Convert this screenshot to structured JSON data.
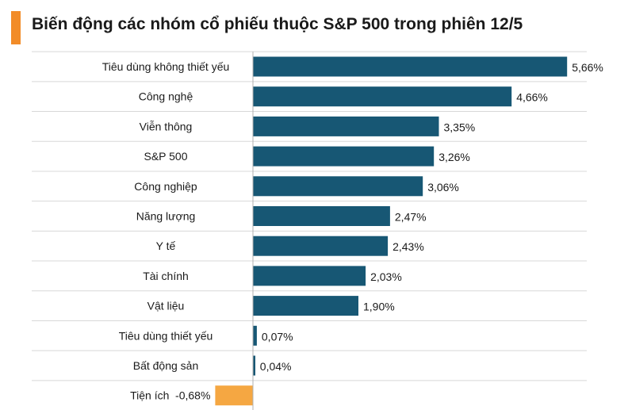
{
  "colors": {
    "title_accent": "#f28c28",
    "positive_bar": "#175774",
    "negative_bar": "#f5a742",
    "gridline": "#d8d8d8",
    "axis_line": "#b0b0b0"
  },
  "chart_data": {
    "type": "bar",
    "orientation": "horizontal",
    "title": "Biến động các nhóm cổ phiếu thuộc S&P 500 trong phiên 12/5",
    "xlabel": "",
    "ylabel": "",
    "grid": true,
    "categories": [
      "Tiêu dùng không thiết yếu",
      "Công nghệ",
      "Viễn thông",
      "S&P 500",
      "Công nghiệp",
      "Năng lượng",
      "Y tế",
      "Tài chính",
      "Vật liệu",
      "Tiêu dùng thiết yếu",
      "Bất động sản",
      "Tiện ích"
    ],
    "values": [
      5.66,
      4.66,
      3.35,
      3.26,
      3.06,
      2.47,
      2.43,
      2.03,
      1.9,
      0.07,
      0.04,
      -0.68
    ],
    "value_labels": [
      "5,66%",
      "4,66%",
      "3,35%",
      "3,26%",
      "3,06%",
      "2,47%",
      "2,43%",
      "2,03%",
      "1,90%",
      "0,07%",
      "0,04%",
      "-0,68%"
    ],
    "xlim": [
      -0.7,
      5.7
    ]
  }
}
